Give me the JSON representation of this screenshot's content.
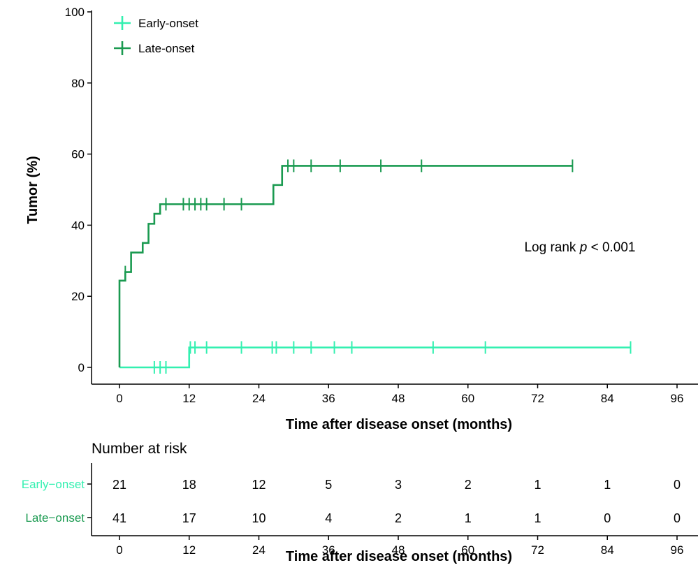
{
  "chart_data": {
    "type": "step-survival",
    "title": "",
    "xlabel": "Time after disease onset (months)",
    "ylabel": "Tumor (%)",
    "xlim": [
      0,
      96
    ],
    "ylim": [
      0,
      100
    ],
    "x_ticks": [
      0,
      12,
      24,
      36,
      48,
      60,
      72,
      84,
      96
    ],
    "y_ticks": [
      0,
      20,
      40,
      60,
      80,
      100
    ],
    "x_tick_labels": [
      "0",
      "12",
      "24",
      "36",
      "48",
      "60",
      "72",
      "84",
      "96"
    ],
    "y_tick_labels": [
      "0",
      "20",
      "40",
      "60",
      "80",
      "100"
    ],
    "grid": false,
    "legend_position": "top-left",
    "annotation": {
      "prefix": "Log rank ",
      "p": "p",
      "suffix": " < 0.001"
    },
    "series": [
      {
        "name": "Early-onset",
        "color": "#33f0b0",
        "steps": [
          [
            0,
            0
          ],
          [
            12,
            5.6
          ],
          [
            88,
            5.6
          ]
        ],
        "censor": [
          6,
          7,
          8,
          12.2,
          13,
          15,
          21,
          26.3,
          27,
          30,
          33,
          37,
          40,
          54,
          63,
          88
        ]
      },
      {
        "name": "Late-onset",
        "color": "#1a9a50",
        "steps": [
          [
            0,
            24.4
          ],
          [
            1,
            26.8
          ],
          [
            2,
            32.3
          ],
          [
            4,
            35
          ],
          [
            5,
            40.4
          ],
          [
            6,
            43.2
          ],
          [
            7,
            45.9
          ],
          [
            26.5,
            51.3
          ],
          [
            28,
            56.7
          ],
          [
            78,
            56.7
          ]
        ],
        "censor": [
          1,
          8,
          11,
          12,
          13,
          14,
          15,
          18,
          21,
          29,
          30,
          33,
          38,
          45,
          52,
          78
        ]
      }
    ],
    "risk_table": {
      "title": "Number at risk",
      "xlabel": "Time after disease onset (months)",
      "times": [
        "0",
        "12",
        "24",
        "36",
        "48",
        "60",
        "72",
        "84",
        "96"
      ],
      "rows": [
        {
          "label": "Early−onset",
          "color": "#33f0b0",
          "counts": [
            "21",
            "18",
            "12",
            "5",
            "3",
            "2",
            "1",
            "1",
            "0"
          ]
        },
        {
          "label": "Late−onset",
          "color": "#1a9a50",
          "counts": [
            "41",
            "17",
            "10",
            "4",
            "2",
            "1",
            "1",
            "0",
            "0"
          ]
        }
      ]
    }
  }
}
